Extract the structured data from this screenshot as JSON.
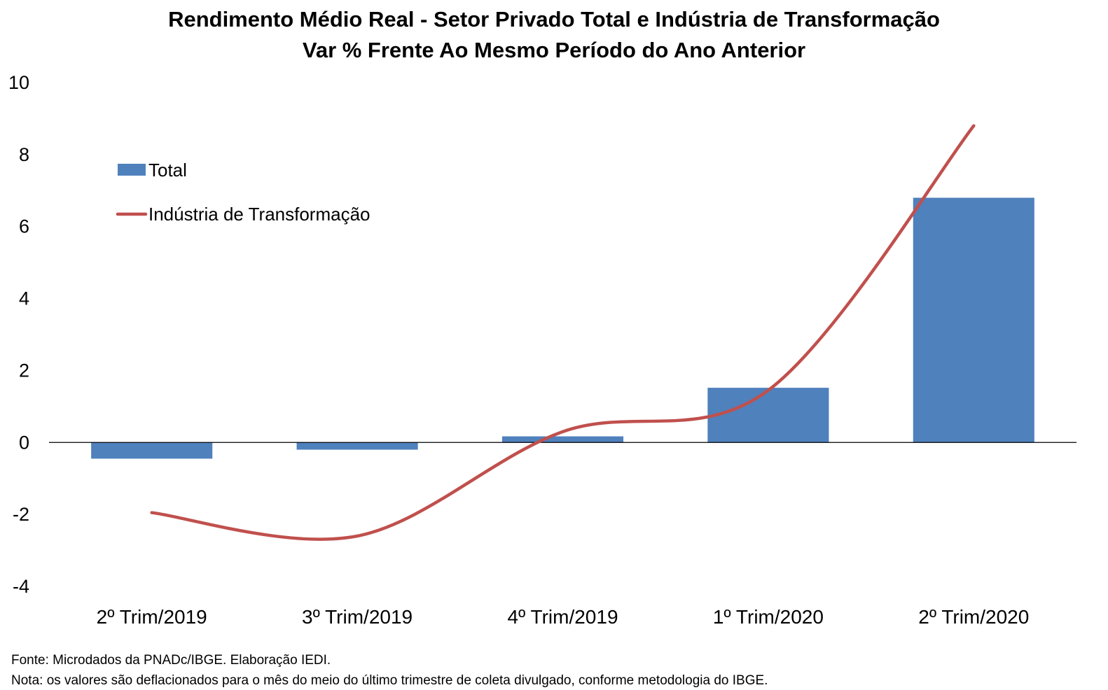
{
  "title_line1": "Rendimento Médio Real - Setor Privado Total e Indústria de Transformação",
  "title_line2": "Var % Frente Ao Mesmo Período do Ano Anterior",
  "footnote_source": "Fonte: Microdados da PNADc/IBGE. Elaboração IEDI.",
  "footnote_note": "Nota: os valores são deflacionados para o mês do meio do último trimestre de coleta divulgado, conforme metodologia do IBGE.",
  "chart_data": {
    "type": "bar",
    "categories": [
      "2º Trim/2019",
      "3º Trim/2019",
      "4º Trim/2019",
      "1º Trim/2020",
      "2º Trim/2020"
    ],
    "ylim": [
      -4,
      10
    ],
    "yticks": [
      -4,
      -2,
      0,
      2,
      4,
      6,
      8,
      10
    ],
    "grid": false,
    "legend_position": "top-left",
    "series": [
      {
        "name": "Total",
        "type": "bar",
        "color": "#4F81BD",
        "values": [
          -0.45,
          -0.2,
          0.17,
          1.52,
          6.8
        ]
      },
      {
        "name": "Indústria de Transformação",
        "type": "line",
        "smooth": true,
        "color": "#C0504D",
        "values": [
          -1.95,
          -2.6,
          0.3,
          1.45,
          8.8
        ]
      }
    ]
  }
}
